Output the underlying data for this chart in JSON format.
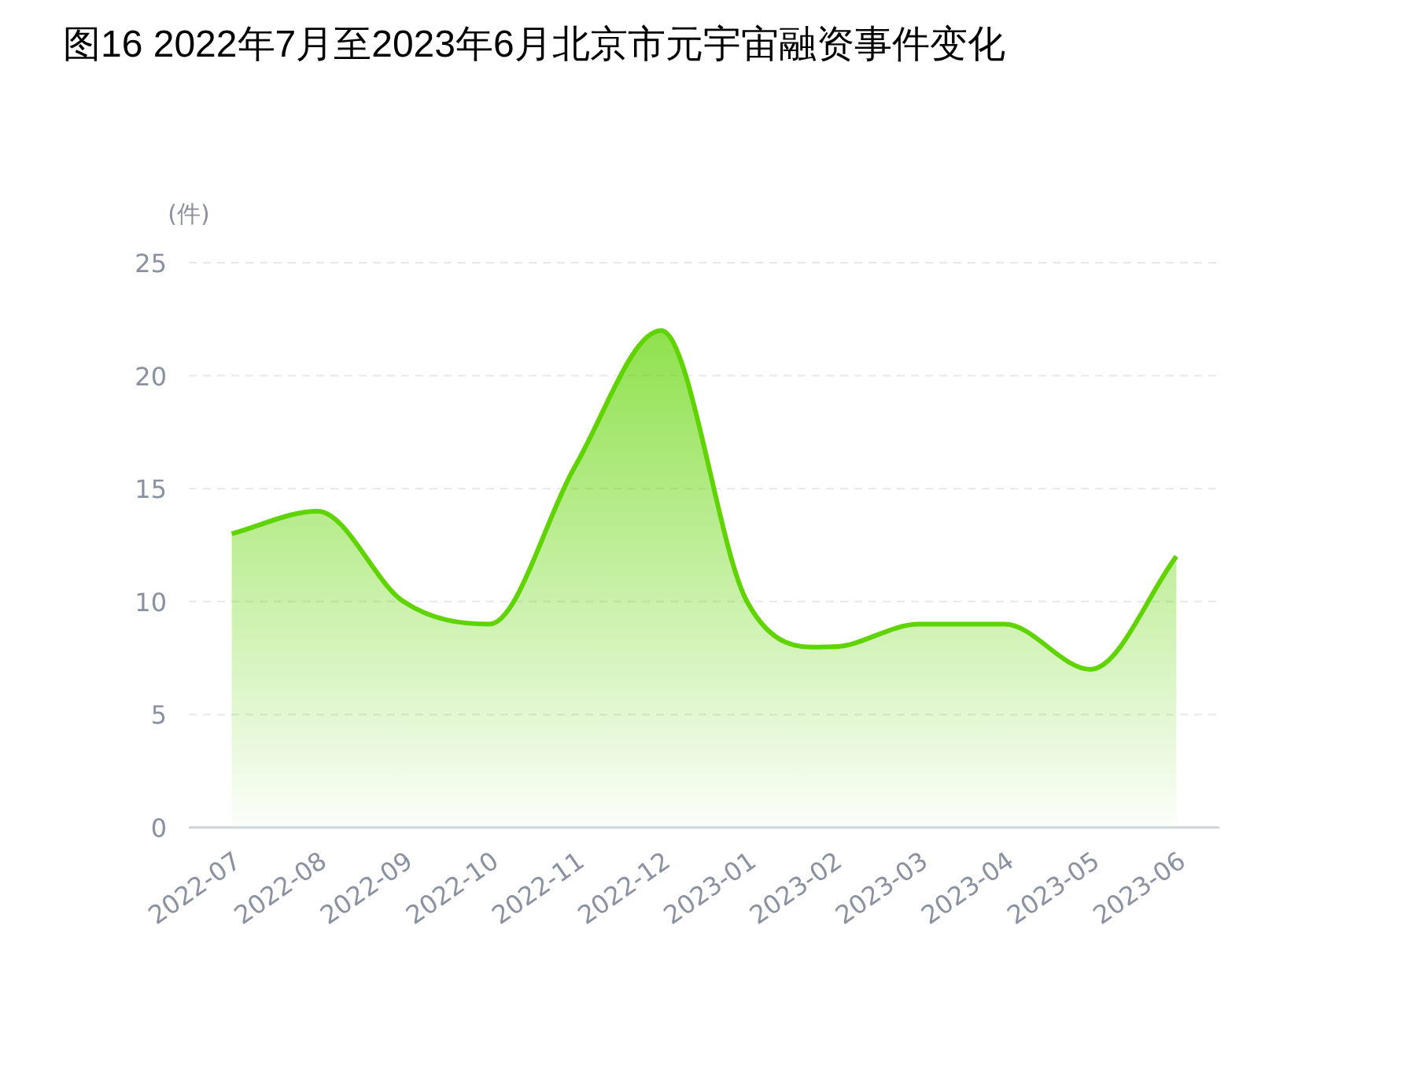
{
  "chart_data": {
    "type": "area",
    "title": "图16 2022年7月至2023年6月北京市元宇宙融资事件变化",
    "ylabel": "(件)",
    "categories": [
      "2022-07",
      "2022-08",
      "2022-09",
      "2022-10",
      "2022-11",
      "2022-12",
      "2023-01",
      "2023-02",
      "2023-03",
      "2023-04",
      "2023-05",
      "2023-06"
    ],
    "series": [
      {
        "color": "#5fd400",
        "values": [
          13,
          14,
          10,
          9,
          16,
          22,
          10,
          8,
          9,
          9,
          7,
          12
        ]
      }
    ],
    "ylim": [
      0,
      25
    ],
    "yticks": [
      0,
      5,
      10,
      15,
      20,
      25
    ],
    "grid": "y"
  }
}
